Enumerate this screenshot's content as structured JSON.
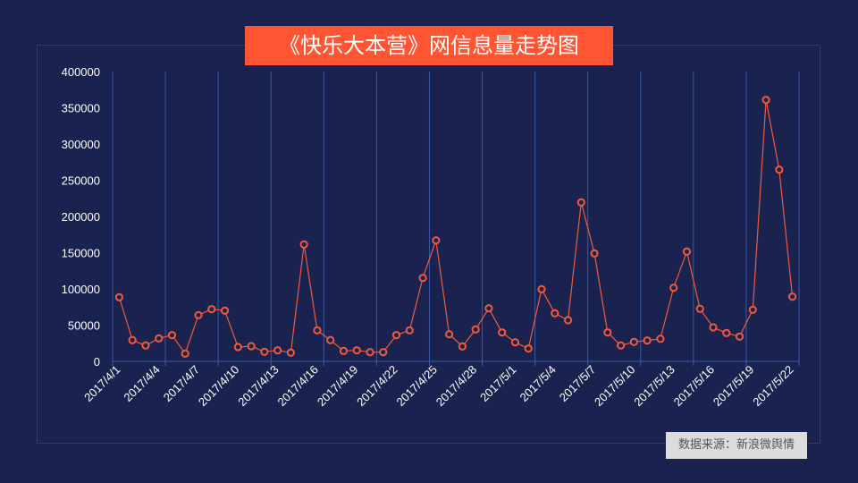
{
  "title": "《快乐大本营》网信息量走势图",
  "source": "数据来源：新浪微舆情",
  "colors": {
    "background": "#1a234f",
    "title_bg": "#ff5533",
    "line": "#f05a3c",
    "grid": "#3b5aa8",
    "source_bg": "#dcdcdc"
  },
  "chart_data": {
    "type": "line",
    "title": "《快乐大本营》网信息量走势图",
    "xlabel": "",
    "ylabel": "",
    "ylim": [
      0,
      400000
    ],
    "yticks": [
      "0",
      "50000",
      "100000",
      "150000",
      "200000",
      "250000",
      "300000",
      "350000",
      "400000"
    ],
    "xtick_labels": [
      "2017/4/1",
      "2017/4/4",
      "2017/4/7",
      "2017/4/10",
      "2017/4/13",
      "2017/4/16",
      "2017/4/19",
      "2017/4/22",
      "2017/4/25",
      "2017/4/28",
      "2017/5/1",
      "2017/5/4",
      "2017/5/7",
      "2017/5/10",
      "2017/5/13",
      "2017/5/16",
      "2017/5/19",
      "2017/5/22"
    ],
    "grid": true,
    "legend": null,
    "categories": [
      "2017/4/1",
      "2017/4/2",
      "2017/4/3",
      "2017/4/4",
      "2017/4/5",
      "2017/4/6",
      "2017/4/7",
      "2017/4/8",
      "2017/4/9",
      "2017/4/10",
      "2017/4/11",
      "2017/4/12",
      "2017/4/13",
      "2017/4/14",
      "2017/4/15",
      "2017/4/16",
      "2017/4/17",
      "2017/4/18",
      "2017/4/19",
      "2017/4/20",
      "2017/4/21",
      "2017/4/22",
      "2017/4/23",
      "2017/4/24",
      "2017/4/25",
      "2017/4/26",
      "2017/4/27",
      "2017/4/28",
      "2017/4/29",
      "2017/4/30",
      "2017/5/1",
      "2017/5/2",
      "2017/5/3",
      "2017/5/4",
      "2017/5/5",
      "2017/5/6",
      "2017/5/7",
      "2017/5/8",
      "2017/5/9",
      "2017/5/10",
      "2017/5/11",
      "2017/5/12",
      "2017/5/13",
      "2017/5/14",
      "2017/5/15",
      "2017/5/16",
      "2017/5/17",
      "2017/5/18",
      "2017/5/19",
      "2017/5/20",
      "2017/5/21",
      "2017/5/22"
    ],
    "series": [
      {
        "name": "信息量",
        "values": [
          88500,
          29300,
          21900,
          31700,
          36200,
          10700,
          63800,
          72000,
          70000,
          19800,
          21000,
          13200,
          15200,
          12000,
          161400,
          42800,
          29300,
          14400,
          15200,
          12700,
          12700,
          36200,
          42800,
          115200,
          167000,
          37400,
          20600,
          44100,
          73200,
          39900,
          26300,
          17700,
          99600,
          66300,
          56800,
          219400,
          149000,
          39900,
          21900,
          26800,
          28800,
          31200,
          101600,
          151500,
          72500,
          46900,
          39100,
          34200,
          71200,
          360900,
          264600,
          89300
        ]
      }
    ]
  }
}
